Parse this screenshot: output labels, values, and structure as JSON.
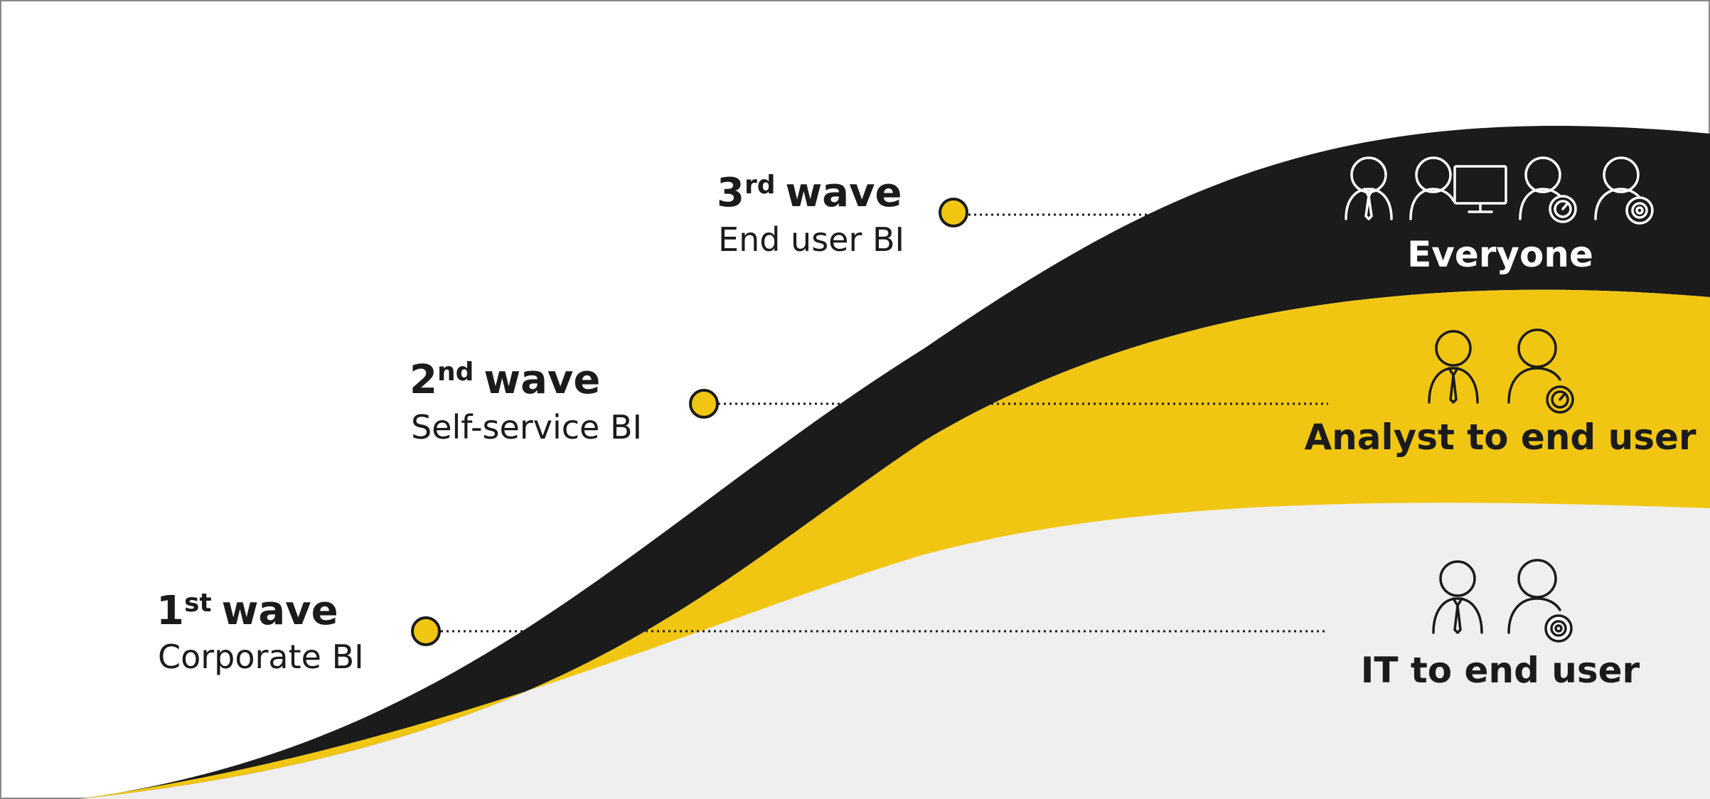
{
  "colors": {
    "black_band": "#1b1b1b",
    "yellow_band": "#f0c613",
    "grey_band": "#efefef",
    "dot_fill": "#f0c613",
    "dot_stroke": "#1b1b1b",
    "text_dark": "#1b1b1b",
    "text_light": "#ffffff"
  },
  "waves": [
    {
      "number": "1",
      "suffix": "st",
      "word": "wave",
      "subtitle": "Corporate BI"
    },
    {
      "number": "2",
      "suffix": "nd",
      "word": "wave",
      "subtitle": "Self-service BI"
    },
    {
      "number": "3",
      "suffix": "rd",
      "word": "wave",
      "subtitle": "End user BI"
    }
  ],
  "audiences": [
    {
      "label": "IT to end user",
      "icons": [
        "person-tie-icon",
        "person-gear-icon"
      ]
    },
    {
      "label": "Analyst to end user",
      "icons": [
        "person-tie-icon",
        "person-gauge-icon"
      ]
    },
    {
      "label": "Everyone",
      "icons": [
        "person-tie-icon",
        "person-monitor-icon",
        "person-gauge-icon",
        "person-gear-icon"
      ]
    }
  ]
}
